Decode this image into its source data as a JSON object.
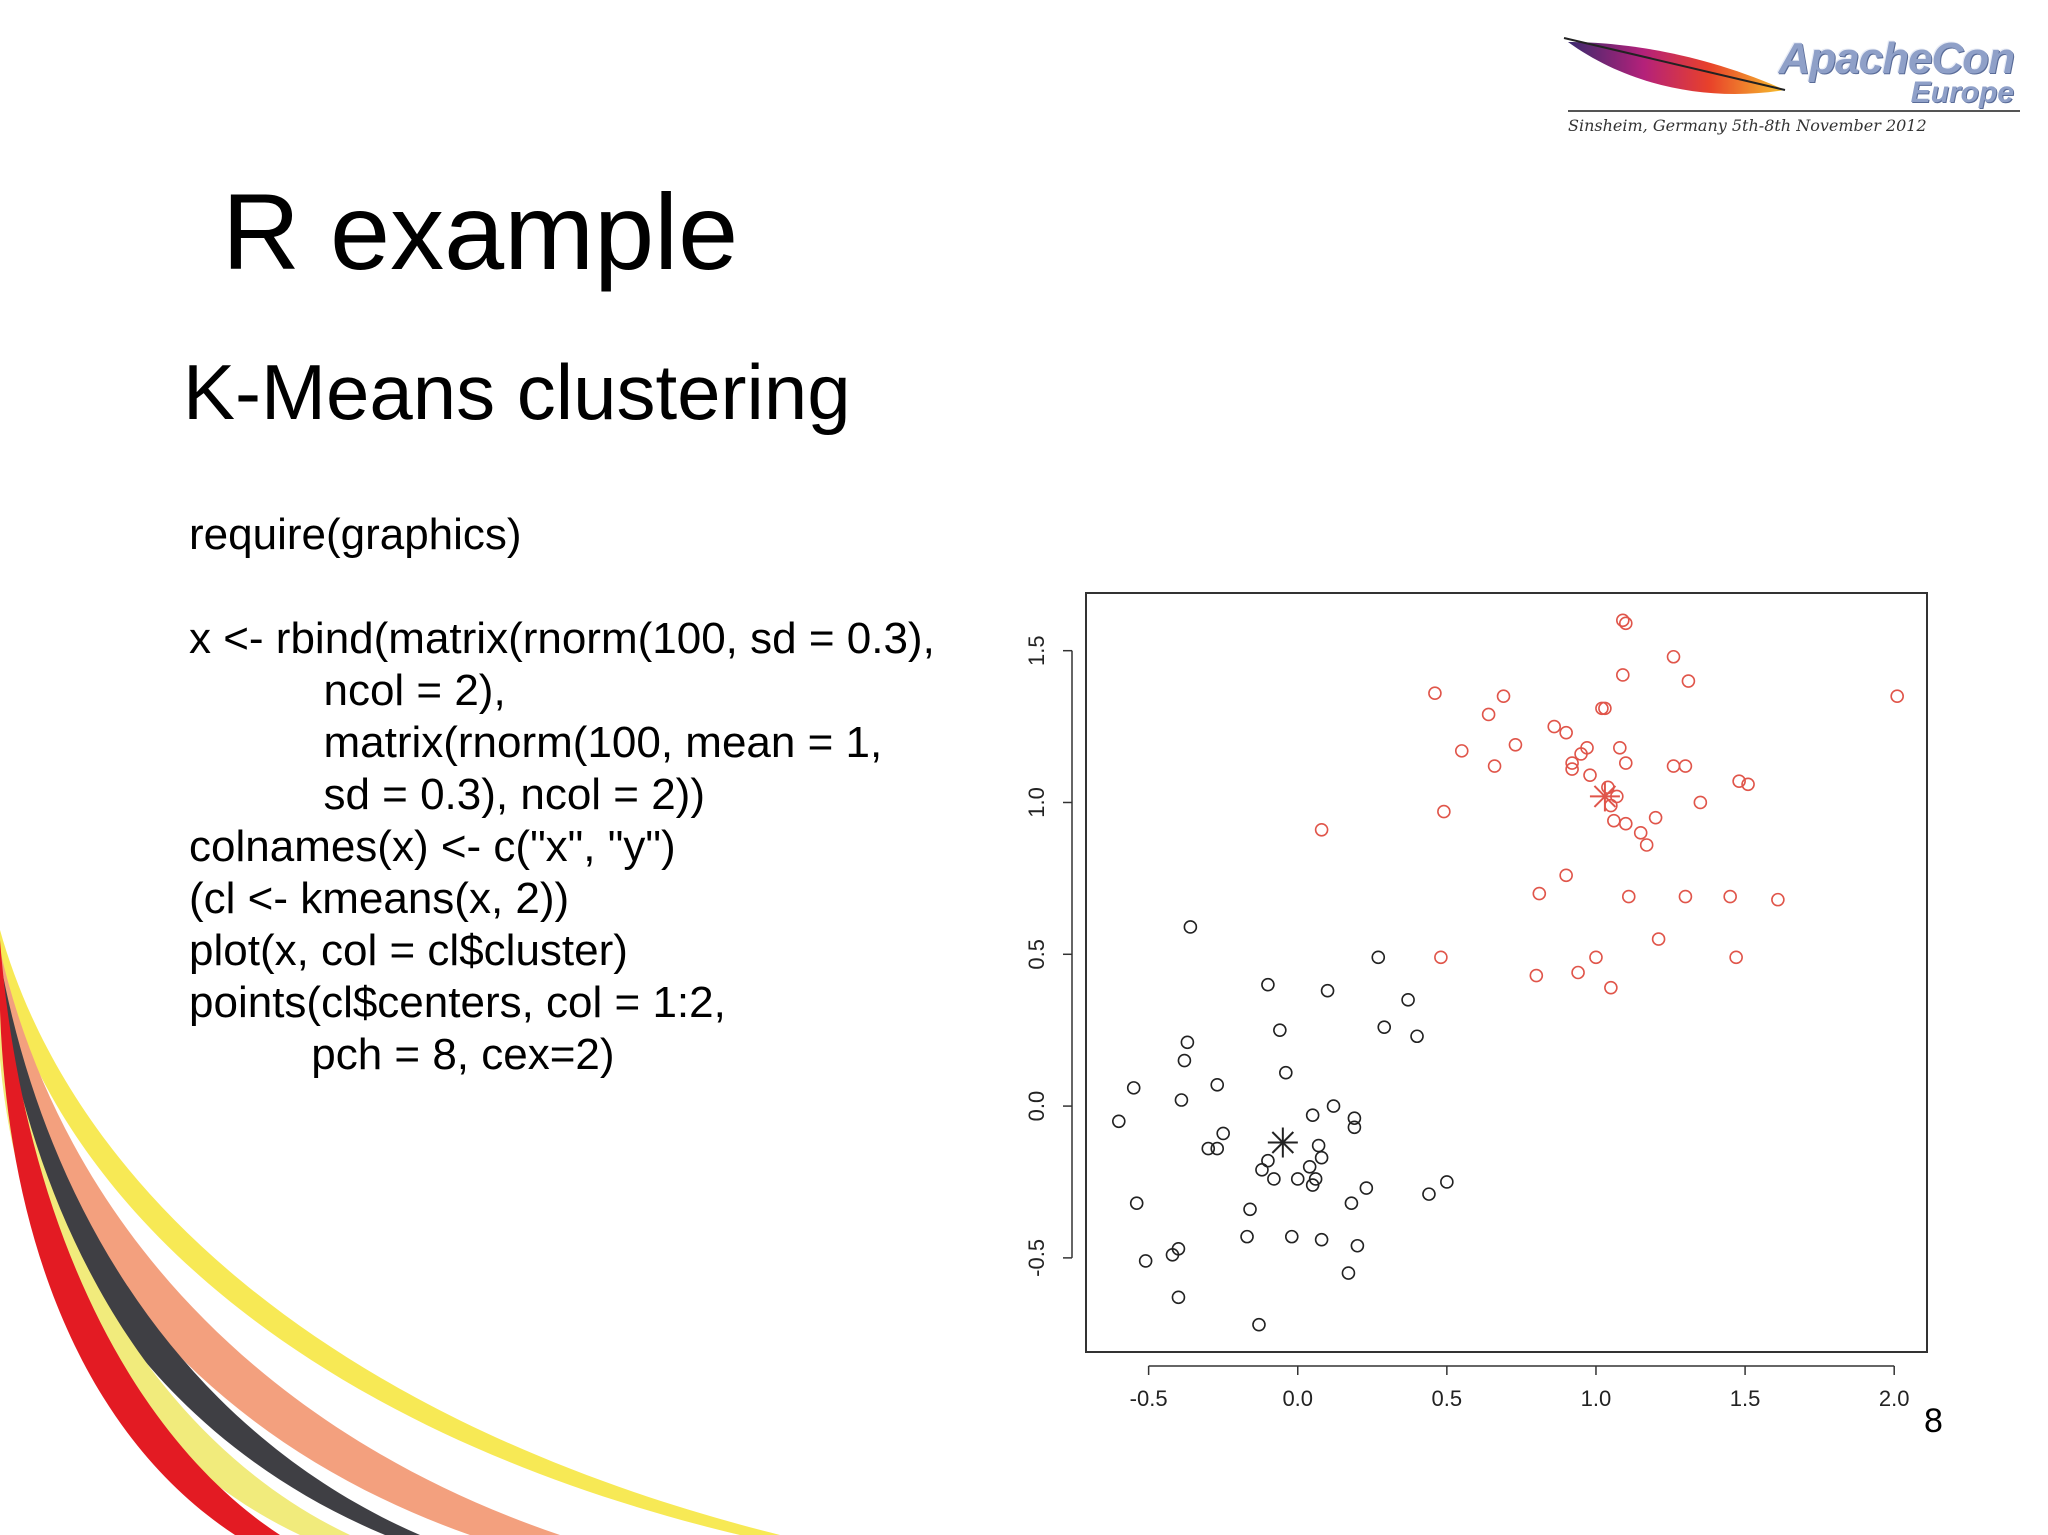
{
  "slide": {
    "title": "R example",
    "subtitle": "K-Means clustering",
    "page_number": "8",
    "code_lines": [
      "require(graphics)",
      "",
      "x <- rbind(matrix(rnorm(100, sd = 0.3),",
      "           ncol = 2),",
      "           matrix(rnorm(100, mean = 1,",
      "           sd = 0.3), ncol = 2))",
      "colnames(x) <- c(\"x\", \"y\")",
      "(cl <- kmeans(x, 2))",
      "plot(x, col = cl$cluster)",
      "points(cl$centers, col = 1:2,",
      "          pch = 8, cex=2)"
    ]
  },
  "logo": {
    "title": "ApacheCon",
    "subtitle": "Europe",
    "caption": "Sinsheim, Germany 5th-8th November 2012"
  },
  "colors": {
    "cluster1": "#222222",
    "cluster2": "#e0554a",
    "wave_red": "#e31b23",
    "wave_yellow": "#f4e21c",
    "wave_salmon": "#f3a07e",
    "wave_dark": "#3f3f44"
  },
  "chart_data": {
    "type": "scatter",
    "title": "",
    "xlabel": "",
    "ylabel": "",
    "xlim": [
      -0.71,
      2.11
    ],
    "ylim": [
      -0.81,
      1.69
    ],
    "xticks": [
      "-0.5",
      "0.0",
      "0.5",
      "1.0",
      "1.5",
      "2.0"
    ],
    "yticks": [
      "-0.5",
      "0.0",
      "0.5",
      "1.0",
      "1.5"
    ],
    "xtick_values": [
      -0.5,
      0,
      0.5,
      1,
      1.5,
      2
    ],
    "ytick_values": [
      -0.5,
      0,
      0.5,
      1,
      1.5
    ],
    "grid": false,
    "series": [
      {
        "cluster": 1,
        "points": [
          [
            -0.6,
            -0.05
          ],
          [
            -0.55,
            0.06
          ],
          [
            -0.54,
            -0.32
          ],
          [
            -0.51,
            -0.51
          ],
          [
            -0.42,
            -0.49
          ],
          [
            -0.4,
            -0.47
          ],
          [
            -0.4,
            -0.63
          ],
          [
            -0.39,
            0.02
          ],
          [
            -0.38,
            0.15
          ],
          [
            -0.37,
            0.21
          ],
          [
            -0.36,
            0.59
          ],
          [
            -0.3,
            -0.14
          ],
          [
            -0.27,
            -0.14
          ],
          [
            -0.27,
            0.07
          ],
          [
            -0.25,
            -0.09
          ],
          [
            -0.17,
            -0.43
          ],
          [
            -0.16,
            -0.34
          ],
          [
            -0.13,
            -0.72
          ],
          [
            -0.12,
            -0.21
          ],
          [
            -0.1,
            -0.18
          ],
          [
            -0.1,
            0.4
          ],
          [
            -0.08,
            -0.24
          ],
          [
            -0.06,
            0.25
          ],
          [
            -0.04,
            0.11
          ],
          [
            -0.02,
            -0.43
          ],
          [
            0.0,
            -0.24
          ],
          [
            0.04,
            -0.2
          ],
          [
            0.05,
            -0.03
          ],
          [
            0.05,
            -0.26
          ],
          [
            0.06,
            -0.24
          ],
          [
            0.07,
            -0.13
          ],
          [
            0.08,
            -0.44
          ],
          [
            0.08,
            -0.17
          ],
          [
            0.1,
            0.38
          ],
          [
            0.12,
            0.0
          ],
          [
            0.17,
            -0.55
          ],
          [
            0.18,
            -0.32
          ],
          [
            0.19,
            -0.04
          ],
          [
            0.19,
            -0.07
          ],
          [
            0.2,
            -0.46
          ],
          [
            0.23,
            -0.27
          ],
          [
            0.27,
            0.49
          ],
          [
            0.29,
            0.26
          ],
          [
            0.37,
            0.35
          ],
          [
            0.4,
            0.23
          ],
          [
            0.44,
            -0.29
          ],
          [
            0.5,
            -0.25
          ]
        ]
      },
      {
        "cluster": 2,
        "points": [
          [
            0.08,
            0.91
          ],
          [
            0.46,
            1.36
          ],
          [
            0.49,
            0.97
          ],
          [
            0.48,
            0.49
          ],
          [
            0.55,
            1.17
          ],
          [
            0.64,
            1.29
          ],
          [
            0.66,
            1.12
          ],
          [
            0.69,
            1.35
          ],
          [
            0.73,
            1.19
          ],
          [
            0.8,
            0.43
          ],
          [
            0.81,
            0.7
          ],
          [
            0.86,
            1.25
          ],
          [
            0.9,
            0.76
          ],
          [
            0.9,
            1.23
          ],
          [
            0.92,
            1.11
          ],
          [
            0.92,
            1.13
          ],
          [
            0.94,
            0.44
          ],
          [
            0.95,
            1.16
          ],
          [
            0.97,
            1.18
          ],
          [
            0.98,
            1.09
          ],
          [
            1.0,
            0.49
          ],
          [
            1.02,
            1.31
          ],
          [
            1.03,
            1.31
          ],
          [
            1.04,
            1.05
          ],
          [
            1.05,
            0.39
          ],
          [
            1.05,
            0.99
          ],
          [
            1.06,
            0.94
          ],
          [
            1.07,
            1.02
          ],
          [
            1.08,
            1.18
          ],
          [
            1.09,
            1.42
          ],
          [
            1.09,
            1.6
          ],
          [
            1.1,
            1.59
          ],
          [
            1.1,
            0.93
          ],
          [
            1.1,
            1.13
          ],
          [
            1.11,
            0.69
          ],
          [
            1.15,
            0.9
          ],
          [
            1.17,
            0.86
          ],
          [
            1.2,
            0.95
          ],
          [
            1.21,
            0.55
          ],
          [
            1.26,
            1.48
          ],
          [
            1.26,
            1.12
          ],
          [
            1.3,
            0.69
          ],
          [
            1.3,
            1.12
          ],
          [
            1.31,
            1.4
          ],
          [
            1.35,
            1.0
          ],
          [
            1.45,
            0.69
          ],
          [
            1.47,
            0.49
          ],
          [
            1.48,
            1.07
          ],
          [
            1.51,
            1.06
          ],
          [
            1.61,
            0.68
          ],
          [
            2.01,
            1.35
          ]
        ]
      }
    ],
    "centers": [
      {
        "cluster": 1,
        "x": -0.05,
        "y": -0.12
      },
      {
        "cluster": 2,
        "x": 1.03,
        "y": 1.02
      }
    ]
  }
}
